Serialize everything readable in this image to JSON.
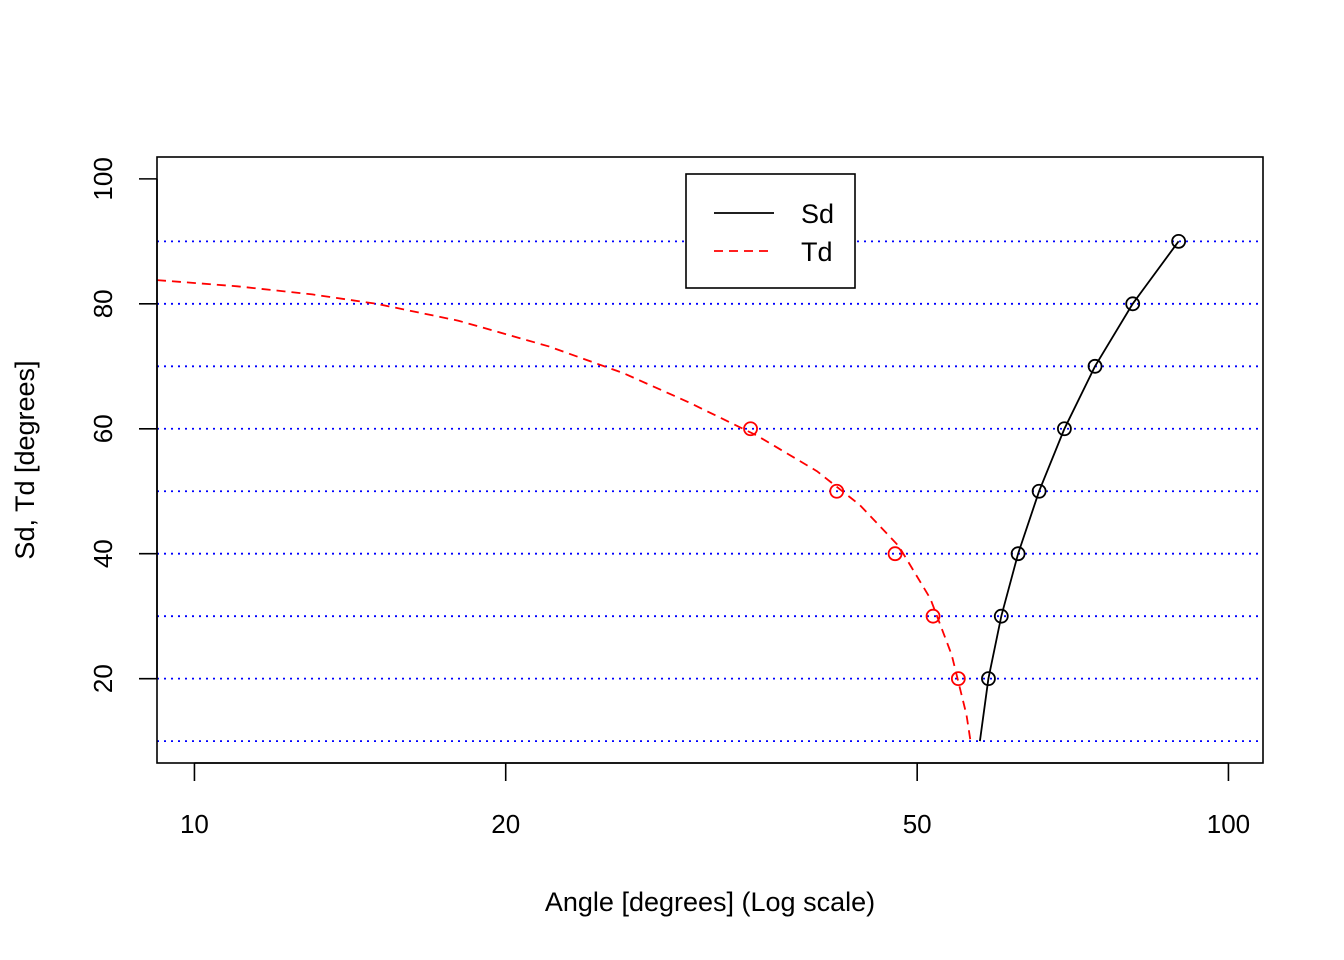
{
  "chart_data": {
    "type": "line",
    "xlabel": "Angle [degrees]   (Log scale)",
    "ylabel": "Sd, Td  [degrees]",
    "x_scale": "log",
    "xlim": [
      9.2,
      108
    ],
    "ylim": [
      6.5,
      103.5
    ],
    "x_ticks": [
      {
        "value": 10,
        "label": "10"
      },
      {
        "value": 20,
        "label": "20"
      },
      {
        "value": 50,
        "label": "50"
      },
      {
        "value": 100,
        "label": "100"
      }
    ],
    "y_ticks": [
      {
        "value": 20,
        "label": "20"
      },
      {
        "value": 40,
        "label": "40"
      },
      {
        "value": 60,
        "label": "60"
      },
      {
        "value": 80,
        "label": "80"
      },
      {
        "value": 100,
        "label": "100"
      }
    ],
    "reference_lines": {
      "orientation": "horizontal",
      "style": "dotted",
      "color": "#0000ff",
      "y": [
        10,
        20,
        30,
        40,
        50,
        60,
        70,
        80,
        90
      ]
    },
    "legend": {
      "placement": "top-center"
    },
    "series": [
      {
        "name": "Sd",
        "color": "#000000",
        "line_style": "solid",
        "curve": [
          [
            57.5,
            10
          ],
          [
            58.6,
            20
          ],
          [
            60.3,
            30
          ],
          [
            62.6,
            40
          ],
          [
            65.6,
            50
          ],
          [
            69.4,
            60
          ],
          [
            74.3,
            70
          ],
          [
            80.8,
            80
          ],
          [
            89.5,
            90
          ]
        ],
        "points": [
          [
            58.6,
            20
          ],
          [
            60.3,
            30
          ],
          [
            62.6,
            40
          ],
          [
            65.6,
            50
          ],
          [
            69.4,
            60
          ],
          [
            74.3,
            70
          ],
          [
            80.8,
            80
          ],
          [
            89.5,
            90
          ]
        ]
      },
      {
        "name": "Td",
        "color": "#ff0000",
        "line_style": "dashed",
        "curve": [
          [
            9.2,
            83.8
          ],
          [
            11,
            82.8
          ],
          [
            13,
            81.5
          ],
          [
            15,
            80.0
          ],
          [
            18,
            77.3
          ],
          [
            22,
            73.2
          ],
          [
            26,
            68.9
          ],
          [
            30,
            64.3
          ],
          [
            35,
            58.9
          ],
          [
            40,
            53.2
          ],
          [
            44,
            47.8
          ],
          [
            48,
            41.2
          ],
          [
            51.5,
            32.8
          ],
          [
            54,
            23.8
          ],
          [
            55.8,
            14.2
          ],
          [
            56.3,
            10
          ]
        ],
        "points": [
          [
            34.5,
            60
          ],
          [
            41.8,
            50
          ],
          [
            47.6,
            40
          ],
          [
            51.8,
            30
          ],
          [
            54.8,
            20
          ]
        ]
      }
    ]
  }
}
